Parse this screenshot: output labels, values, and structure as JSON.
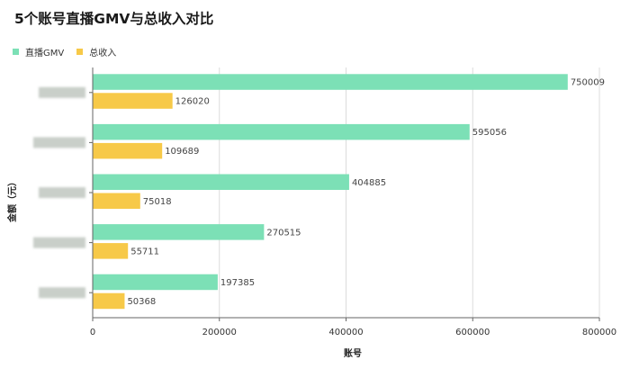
{
  "title": "5个账号直播GMV与总收入对比",
  "chart_data": {
    "type": "bar",
    "orientation": "horizontal",
    "categories": [
      "",
      "",
      "",
      "",
      ""
    ],
    "series": [
      {
        "name": "直播GMV",
        "color": "#7ce0b6",
        "values": [
          750009,
          595056,
          404885,
          270515,
          197385
        ]
      },
      {
        "name": "总收入",
        "color": "#f7c948",
        "values": [
          126020,
          109689,
          75018,
          55711,
          50368
        ]
      }
    ],
    "xlabel": "账号",
    "ylabel": "金额（元）",
    "xlim": [
      0,
      800000
    ],
    "xticks": [
      "0",
      "200000",
      "400000",
      "600000",
      "800000"
    ],
    "grid": true,
    "legend_position": "top-left",
    "category_labels_obscured": true
  }
}
